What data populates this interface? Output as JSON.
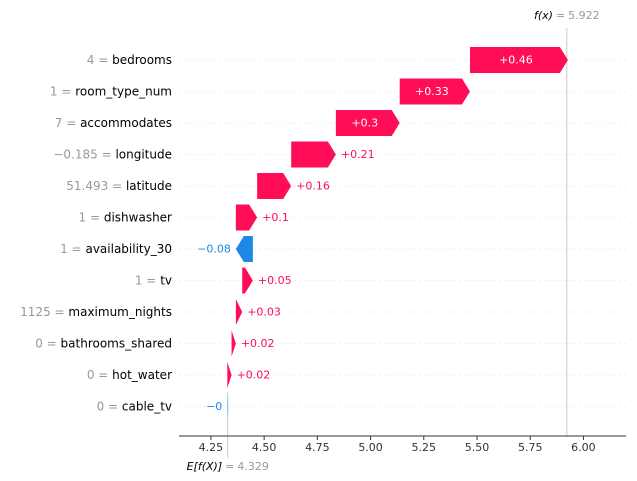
{
  "chart_data": {
    "type": "waterfall",
    "fx_label": "f(x)",
    "fx_value": "5.922",
    "base_label": "E[f(X)]",
    "base_value": "4.329",
    "base": 4.329,
    "final": 5.922,
    "xlim": [
      4.1,
      6.2
    ],
    "ticks": [
      "4.25",
      "4.50",
      "4.75",
      "5.00",
      "5.25",
      "5.50",
      "5.75",
      "6.00"
    ],
    "features": [
      {
        "value": "4",
        "name": "bedrooms",
        "contrib": 0.46,
        "label": "+0.46"
      },
      {
        "value": "1",
        "name": "room_type_num",
        "contrib": 0.33,
        "label": "+0.33"
      },
      {
        "value": "7",
        "name": "accommodates",
        "contrib": 0.3,
        "label": "+0.3"
      },
      {
        "value": "−0.185",
        "name": "longitude",
        "contrib": 0.21,
        "label": "+0.21"
      },
      {
        "value": "51.493",
        "name": "latitude",
        "contrib": 0.16,
        "label": "+0.16"
      },
      {
        "value": "1",
        "name": "dishwasher",
        "contrib": 0.1,
        "label": "+0.1"
      },
      {
        "value": "1",
        "name": "availability_30",
        "contrib": -0.08,
        "label": "−0.08"
      },
      {
        "value": "1",
        "name": "tv",
        "contrib": 0.05,
        "label": "+0.05"
      },
      {
        "value": "1125",
        "name": "maximum_nights",
        "contrib": 0.03,
        "label": "+0.03"
      },
      {
        "value": "0",
        "name": "bathrooms_shared",
        "contrib": 0.02,
        "label": "+0.02"
      },
      {
        "value": "0",
        "name": "hot_water",
        "contrib": 0.02,
        "label": "+0.02"
      },
      {
        "value": "0",
        "name": "cable_tv",
        "contrib": -0.002,
        "label": "−0"
      }
    ]
  },
  "colors": {
    "positive": "#ff0d57",
    "negative": "#1e88e5",
    "axis": "#333333",
    "value_text": "#999999",
    "name_text": "#000000",
    "grid": "#cccccc"
  }
}
